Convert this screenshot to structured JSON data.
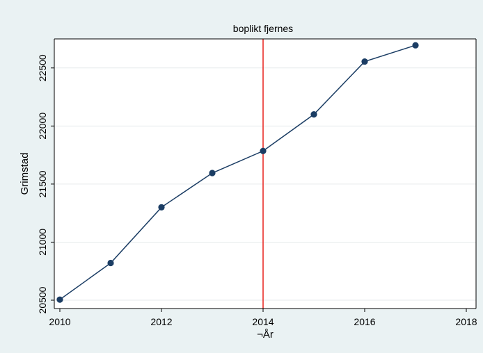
{
  "chart_data": {
    "type": "line",
    "title": "",
    "xlabel": "¬År",
    "ylabel": "Grimstad",
    "x": [
      2010,
      2011,
      2012,
      2013,
      2014,
      2015,
      2016,
      2017
    ],
    "series": [
      {
        "values": [
          20505,
          20820,
          21300,
          21595,
          21785,
          22100,
          22555,
          22695
        ]
      }
    ],
    "xlim": [
      2010,
      2018
    ],
    "ylim": [
      20500,
      22750
    ],
    "xticks": [
      2010,
      2012,
      2014,
      2016,
      2018
    ],
    "yticks": [
      20500,
      21000,
      21500,
      22000,
      22500
    ],
    "grid": "horizontal",
    "reference_line": {
      "x": 2014,
      "label": "boplikt fjernes",
      "color": "#e8201c"
    },
    "line_color": "#1b3d64",
    "marker_color": "#1b3d64",
    "background_outer": "#eaf2f3",
    "background_plot": "#ffffff"
  }
}
